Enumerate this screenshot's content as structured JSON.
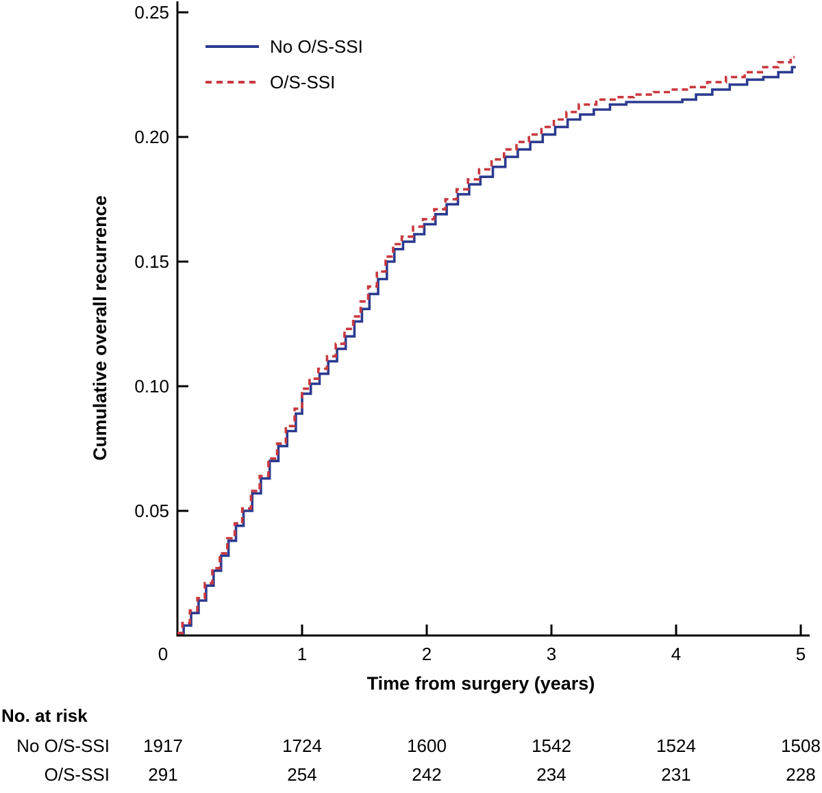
{
  "page": {
    "background": "#ffffff",
    "text_color": "#000000"
  },
  "chart_data": {
    "type": "line",
    "subtype": "kaplan-meier-step",
    "title": "",
    "xlabel": "Time from surgery (years)",
    "ylabel": "Cumulative overall recurrence",
    "xlim": [
      0,
      5
    ],
    "ylim": [
      0,
      0.25
    ],
    "xticks": [
      0,
      1,
      2,
      3,
      4,
      5
    ],
    "xtick_labels": [
      "0",
      "1",
      "2",
      "3",
      "4",
      "5"
    ],
    "yticks": [
      0.05,
      0.1,
      0.15,
      0.2,
      0.25
    ],
    "ytick_labels": [
      "0.05",
      "0.10",
      "0.15",
      "0.20",
      "0.25"
    ],
    "grid": false,
    "legend_position": "top-left-inside",
    "axis_color": "#000000",
    "series": [
      {
        "name": "No O/S-SSI",
        "color": "#2b3a8f",
        "line_style": "solid",
        "step": true,
        "points": [
          [
            0,
            0.001
          ],
          [
            0.05,
            0.004
          ],
          [
            0.11,
            0.009
          ],
          [
            0.17,
            0.014
          ],
          [
            0.23,
            0.02
          ],
          [
            0.29,
            0.026
          ],
          [
            0.35,
            0.032
          ],
          [
            0.41,
            0.038
          ],
          [
            0.47,
            0.044
          ],
          [
            0.53,
            0.05
          ],
          [
            0.6,
            0.057
          ],
          [
            0.67,
            0.063
          ],
          [
            0.74,
            0.07
          ],
          [
            0.81,
            0.076
          ],
          [
            0.88,
            0.082
          ],
          [
            0.95,
            0.089
          ],
          [
            1.0,
            0.097
          ],
          [
            1.07,
            0.101
          ],
          [
            1.14,
            0.105
          ],
          [
            1.21,
            0.11
          ],
          [
            1.28,
            0.115
          ],
          [
            1.35,
            0.12
          ],
          [
            1.42,
            0.126
          ],
          [
            1.48,
            0.131
          ],
          [
            1.54,
            0.137
          ],
          [
            1.61,
            0.143
          ],
          [
            1.68,
            0.15
          ],
          [
            1.74,
            0.155
          ],
          [
            1.81,
            0.158
          ],
          [
            1.9,
            0.161
          ],
          [
            1.98,
            0.165
          ],
          [
            2.07,
            0.169
          ],
          [
            2.16,
            0.173
          ],
          [
            2.25,
            0.177
          ],
          [
            2.34,
            0.181
          ],
          [
            2.43,
            0.184
          ],
          [
            2.53,
            0.188
          ],
          [
            2.63,
            0.192
          ],
          [
            2.73,
            0.195
          ],
          [
            2.83,
            0.198
          ],
          [
            2.93,
            0.201
          ],
          [
            3.03,
            0.204
          ],
          [
            3.13,
            0.207
          ],
          [
            3.23,
            0.209
          ],
          [
            3.34,
            0.211
          ],
          [
            3.47,
            0.213
          ],
          [
            3.6,
            0.214
          ],
          [
            4.05,
            0.215
          ],
          [
            4.16,
            0.217
          ],
          [
            4.29,
            0.219
          ],
          [
            4.43,
            0.221
          ],
          [
            4.57,
            0.223
          ],
          [
            4.7,
            0.224
          ],
          [
            4.82,
            0.226
          ],
          [
            4.93,
            0.228
          ],
          [
            4.96,
            0.228
          ]
        ]
      },
      {
        "name": "O/S-SSI",
        "color": "#c9383f",
        "line_style": "dashed",
        "step": true,
        "points": [
          [
            0,
            0.001
          ],
          [
            0.04,
            0.005
          ],
          [
            0.1,
            0.01
          ],
          [
            0.16,
            0.015
          ],
          [
            0.22,
            0.021
          ],
          [
            0.28,
            0.027
          ],
          [
            0.34,
            0.033
          ],
          [
            0.4,
            0.039
          ],
          [
            0.46,
            0.045
          ],
          [
            0.52,
            0.051
          ],
          [
            0.59,
            0.058
          ],
          [
            0.66,
            0.064
          ],
          [
            0.73,
            0.071
          ],
          [
            0.8,
            0.077
          ],
          [
            0.87,
            0.084
          ],
          [
            0.94,
            0.091
          ],
          [
            1.0,
            0.099
          ],
          [
            1.06,
            0.103
          ],
          [
            1.13,
            0.107
          ],
          [
            1.2,
            0.112
          ],
          [
            1.27,
            0.117
          ],
          [
            1.34,
            0.123
          ],
          [
            1.41,
            0.128
          ],
          [
            1.47,
            0.134
          ],
          [
            1.53,
            0.14
          ],
          [
            1.6,
            0.146
          ],
          [
            1.67,
            0.152
          ],
          [
            1.73,
            0.157
          ],
          [
            1.8,
            0.16
          ],
          [
            1.89,
            0.164
          ],
          [
            1.97,
            0.167
          ],
          [
            2.06,
            0.171
          ],
          [
            2.15,
            0.175
          ],
          [
            2.24,
            0.179
          ],
          [
            2.33,
            0.183
          ],
          [
            2.42,
            0.187
          ],
          [
            2.52,
            0.191
          ],
          [
            2.62,
            0.195
          ],
          [
            2.72,
            0.198
          ],
          [
            2.82,
            0.201
          ],
          [
            2.92,
            0.204
          ],
          [
            3.02,
            0.207
          ],
          [
            3.12,
            0.21
          ],
          [
            3.22,
            0.213
          ],
          [
            3.36,
            0.215
          ],
          [
            3.52,
            0.216
          ],
          [
            3.66,
            0.217
          ],
          [
            3.82,
            0.218
          ],
          [
            3.96,
            0.219
          ],
          [
            4.1,
            0.22
          ],
          [
            4.25,
            0.222
          ],
          [
            4.4,
            0.224
          ],
          [
            4.55,
            0.226
          ],
          [
            4.7,
            0.228
          ],
          [
            4.82,
            0.23
          ],
          [
            4.92,
            0.232
          ],
          [
            4.95,
            0.232
          ]
        ]
      }
    ]
  },
  "legend": {
    "items": [
      {
        "label": "No O/S-SSI",
        "color": "#2b3a8f",
        "style": "solid"
      },
      {
        "label": "O/S-SSI",
        "color": "#c9383f",
        "style": "dashed"
      }
    ]
  },
  "risk_table": {
    "title": "No. at risk",
    "time_points": [
      0,
      1,
      2,
      3,
      4,
      5
    ],
    "rows": [
      {
        "label": "No O/S-SSI",
        "values": [
          "1917",
          "1724",
          "1600",
          "1542",
          "1524",
          "1508"
        ]
      },
      {
        "label": "O/S-SSI",
        "values": [
          "291",
          "254",
          "242",
          "234",
          "231",
          "228"
        ]
      }
    ]
  }
}
